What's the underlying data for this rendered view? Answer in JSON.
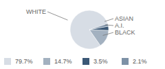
{
  "chart_data": {
    "type": "pie",
    "categories": [
      "WHITE",
      "BLACK",
      "A.I.",
      "ASIAN"
    ],
    "values": [
      79.7,
      14.7,
      3.5,
      2.1
    ],
    "value_labels": [
      "79.7%",
      "14.7%",
      "3.5%",
      "2.1%"
    ],
    "colors": [
      "#d7dde5",
      "#a3b1c0",
      "#3b5876",
      "#7d91a6"
    ],
    "legend": "bottom"
  }
}
